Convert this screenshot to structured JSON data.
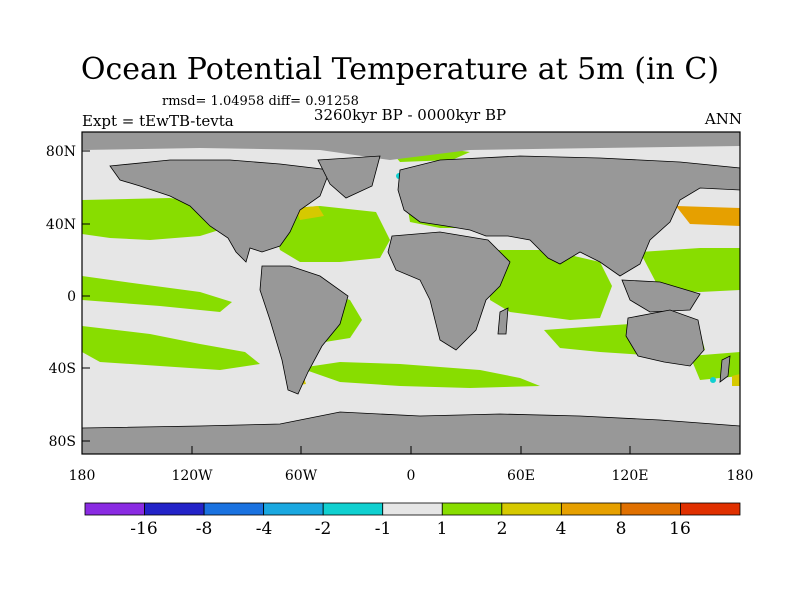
{
  "header": {
    "title": "Ocean Potential Temperature at 5m (in C)",
    "stats": "rmsd= 1.04958 diff= 0.91258",
    "experiment": "Expt = tEwTB-tevta",
    "period": "3260kyr BP - 0000kyr BP",
    "season": "ANN"
  },
  "map": {
    "lon_ticks": [
      "180",
      "120W",
      "60W",
      "0",
      "60E",
      "120E",
      "180"
    ],
    "lat_ticks": [
      "80N",
      "40N",
      "0",
      "40S",
      "80S"
    ],
    "colors": {
      "land": "#989898",
      "ocean_neutral": "#e6e6e6",
      "anomaly_1_2": "#88dd00",
      "anomaly_2_4": "#d6c900",
      "anomaly_4_8": "#e6a000",
      "coast": "#000000"
    }
  },
  "colorbar": {
    "labels": [
      "-16",
      "-8",
      "-4",
      "-2",
      "-1",
      "1",
      "2",
      "4",
      "8",
      "16"
    ],
    "colors": [
      "#8a2be2",
      "#2323c8",
      "#1a72e0",
      "#1aa8e0",
      "#10d0d0",
      "#e6e6e6",
      "#88dd00",
      "#d6c900",
      "#e6a000",
      "#e07000",
      "#e03000"
    ]
  }
}
